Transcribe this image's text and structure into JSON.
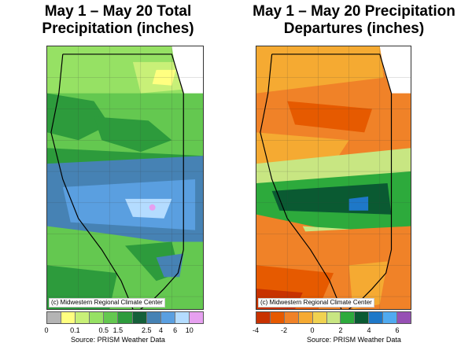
{
  "left_panel": {
    "title_line1": "May 1 – May 20 Total",
    "title_line2": "Precipitation (inches)",
    "credit": "(c) Midwestern Regional Climate Center",
    "legend_colors": [
      "#b4b4b4",
      "#ffff80",
      "#c8f078",
      "#96e164",
      "#64c850",
      "#2d9b3c",
      "#15603a",
      "#4682b4",
      "#5a9fe0",
      "#b4dcff",
      "#e6a0f0"
    ],
    "tick_labels": [
      "0",
      "0.1",
      "0.5",
      "1.5",
      "2.5",
      "4",
      "6",
      "10"
    ],
    "tick_fractions": [
      0.0,
      0.1818,
      0.3636,
      0.4545,
      0.6364,
      0.7273,
      0.8182,
      0.9091
    ],
    "source": "Source: PRISM Weather Data"
  },
  "right_panel": {
    "title_line1": "May 1 – May 20 Precipitation",
    "title_line2": "Departures (inches)",
    "credit": "(c) Midwestern Regional Climate Center",
    "legend_colors": [
      "#c83200",
      "#e65a00",
      "#f08228",
      "#f5aa32",
      "#f0d250",
      "#c8e682",
      "#2daa3c",
      "#0a5a32",
      "#1e78c8",
      "#50aaf0",
      "#9650b4"
    ],
    "tick_labels": [
      "-4",
      "-2",
      "0",
      "2",
      "4",
      "6"
    ],
    "tick_fractions": [
      0.0,
      0.1818,
      0.3636,
      0.5455,
      0.7273,
      0.9091
    ],
    "source": "Source: PRISM Weather Data"
  }
}
